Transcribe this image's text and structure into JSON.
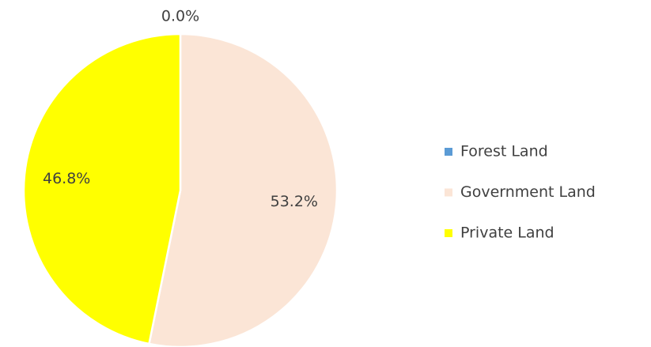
{
  "chart_data": {
    "type": "pie",
    "categories": [
      "Forest Land",
      "Government Land",
      "Private Land"
    ],
    "values": [
      0,
      53.2,
      46.8
    ],
    "value_labels": [
      "0.0%",
      "53.2%",
      "46.8%"
    ],
    "colors": [
      "#5b9bd5",
      "#fbe5d6",
      "#ffff00"
    ],
    "legend": "right"
  }
}
